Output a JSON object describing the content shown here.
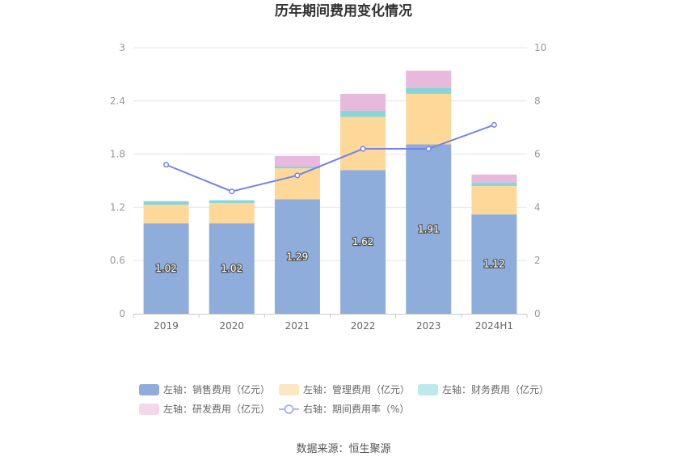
{
  "chart_data": {
    "type": "bar",
    "stacked": true,
    "title": "历年期间费用变化情况",
    "categories": [
      "2019",
      "2020",
      "2021",
      "2022",
      "2023",
      "2024H1"
    ],
    "y_left": {
      "ticks": [
        "0",
        "0.6",
        "1.2",
        "1.8",
        "2.4",
        "3"
      ],
      "ylim": [
        0,
        3
      ]
    },
    "y_right": {
      "ticks": [
        "0",
        "2",
        "4",
        "6",
        "8",
        "10"
      ],
      "ylim": [
        0,
        10
      ]
    },
    "grid": true,
    "legend_position": "bottom",
    "series": [
      {
        "name": "左轴：销售费用（亿元）",
        "axis": "left",
        "type": "bar",
        "color": "#8eaddb",
        "values": [
          1.02,
          1.02,
          1.29,
          1.62,
          1.91,
          1.12
        ],
        "labels": [
          "1.02",
          "1.02",
          "1.29",
          "1.62",
          "1.91",
          "1.12"
        ]
      },
      {
        "name": "左轴：管理费用（亿元）",
        "axis": "left",
        "type": "bar",
        "color": "#fdd898",
        "values": [
          0.21,
          0.23,
          0.35,
          0.6,
          0.57,
          0.32
        ]
      },
      {
        "name": "左轴：财务费用（亿元）",
        "axis": "left",
        "type": "bar",
        "color": "#88d5d7",
        "values": [
          0.04,
          0.03,
          0.02,
          0.07,
          0.07,
          0.04
        ]
      },
      {
        "name": "左轴：研发费用（亿元）",
        "axis": "left",
        "type": "bar",
        "color": "#e7b9dc",
        "values": [
          0.0,
          0.0,
          0.12,
          0.19,
          0.19,
          0.09
        ]
      },
      {
        "name": "右轴：期间费用率（%）",
        "axis": "right",
        "type": "line",
        "color": "#7583ea",
        "values": [
          5.6,
          4.6,
          5.2,
          6.2,
          6.2,
          7.1
        ]
      }
    ],
    "source": "数据来源：恒生聚源"
  }
}
